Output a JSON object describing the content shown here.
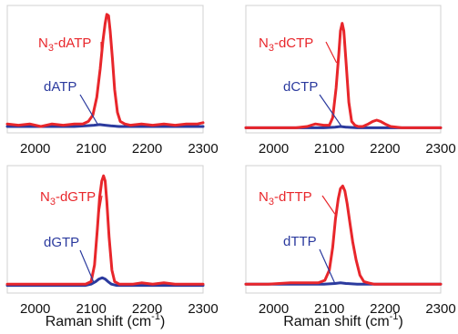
{
  "chart_data": [
    {
      "type": "line",
      "xlabel": "",
      "xlim": [
        1950,
        2300
      ],
      "xticks": [
        2000,
        2100,
        2200,
        2300
      ],
      "ylim": [
        0,
        1
      ],
      "series": [
        {
          "name": "N3-dATP",
          "label_main": "N",
          "label_sub": "3",
          "label_rest": "-dATP",
          "color": "#e8262b",
          "x": [
            1950,
            1970,
            1990,
            2010,
            2030,
            2050,
            2070,
            2085,
            2095,
            2103,
            2110,
            2116,
            2121,
            2125,
            2128,
            2131,
            2134,
            2138,
            2142,
            2147,
            2152,
            2160,
            2170,
            2190,
            2210,
            2230,
            2250,
            2270,
            2290,
            2300
          ],
          "y": [
            0.07,
            0.06,
            0.07,
            0.05,
            0.07,
            0.06,
            0.07,
            0.07,
            0.09,
            0.14,
            0.28,
            0.5,
            0.72,
            0.86,
            0.93,
            0.92,
            0.8,
            0.58,
            0.34,
            0.16,
            0.09,
            0.07,
            0.06,
            0.07,
            0.06,
            0.07,
            0.06,
            0.07,
            0.07,
            0.08
          ]
        },
        {
          "name": "dATP",
          "color": "#2b3a9e",
          "x": [
            1950,
            1990,
            2030,
            2070,
            2090,
            2105,
            2115,
            2125,
            2135,
            2150,
            2170,
            2210,
            2250,
            2300
          ],
          "y": [
            0.05,
            0.05,
            0.05,
            0.05,
            0.055,
            0.06,
            0.065,
            0.06,
            0.055,
            0.05,
            0.05,
            0.05,
            0.05,
            0.05
          ]
        }
      ]
    },
    {
      "type": "line",
      "xlabel": "",
      "xlim": [
        1950,
        2300
      ],
      "xticks": [
        2000,
        2100,
        2200,
        2300
      ],
      "ylim": [
        0,
        1
      ],
      "series": [
        {
          "name": "N3-dCTP",
          "label_main": "N",
          "label_sub": "3",
          "label_rest": "-dCTP",
          "color": "#e8262b",
          "x": [
            1950,
            1980,
            2010,
            2040,
            2060,
            2075,
            2090,
            2100,
            2106,
            2112,
            2117,
            2120,
            2123,
            2126,
            2130,
            2135,
            2140,
            2146,
            2152,
            2160,
            2170,
            2178,
            2185,
            2192,
            2200,
            2210,
            2230,
            2260,
            2300
          ],
          "y": [
            0.04,
            0.04,
            0.04,
            0.04,
            0.05,
            0.07,
            0.06,
            0.06,
            0.12,
            0.35,
            0.62,
            0.8,
            0.86,
            0.8,
            0.55,
            0.24,
            0.09,
            0.06,
            0.05,
            0.05,
            0.07,
            0.09,
            0.1,
            0.09,
            0.07,
            0.05,
            0.04,
            0.04,
            0.04
          ]
        },
        {
          "name": "dCTP",
          "color": "#2b3a9e",
          "x": [
            1950,
            2000,
            2050,
            2090,
            2110,
            2120,
            2130,
            2150,
            2200,
            2250,
            2300
          ],
          "y": [
            0.04,
            0.04,
            0.04,
            0.04,
            0.045,
            0.05,
            0.045,
            0.04,
            0.04,
            0.04,
            0.04
          ]
        }
      ]
    },
    {
      "type": "line",
      "xlabel": "Raman shift (cm",
      "xlabel_sup": "-1",
      "xlabel_end": ")",
      "xlim": [
        1950,
        2300
      ],
      "xticks": [
        2000,
        2100,
        2200,
        2300
      ],
      "ylim": [
        0,
        1
      ],
      "series": [
        {
          "name": "N3-dGTP",
          "label_main": "N",
          "label_sub": "3",
          "label_rest": "-dGTP",
          "color": "#e8262b",
          "x": [
            1950,
            1980,
            2010,
            2040,
            2070,
            2090,
            2100,
            2106,
            2111,
            2115,
            2119,
            2122,
            2125,
            2128,
            2132,
            2137,
            2142,
            2150,
            2160,
            2175,
            2190,
            2210,
            2230,
            2250,
            2270,
            2300
          ],
          "y": [
            0.07,
            0.07,
            0.07,
            0.07,
            0.07,
            0.07,
            0.09,
            0.22,
            0.5,
            0.75,
            0.88,
            0.92,
            0.88,
            0.72,
            0.44,
            0.18,
            0.09,
            0.07,
            0.07,
            0.07,
            0.08,
            0.07,
            0.08,
            0.07,
            0.07,
            0.07
          ]
        },
        {
          "name": "dGTP",
          "color": "#2b3a9e",
          "x": [
            1950,
            2000,
            2050,
            2090,
            2100,
            2108,
            2114,
            2120,
            2125,
            2130,
            2136,
            2145,
            2160,
            2200,
            2250,
            2300
          ],
          "y": [
            0.06,
            0.06,
            0.06,
            0.06,
            0.07,
            0.09,
            0.11,
            0.12,
            0.11,
            0.09,
            0.07,
            0.06,
            0.06,
            0.06,
            0.06,
            0.06
          ]
        }
      ]
    },
    {
      "type": "line",
      "xlabel": "Raman shift (cm",
      "xlabel_sup": "-1",
      "xlabel_end": ")",
      "xlim": [
        1950,
        2300
      ],
      "xticks": [
        2000,
        2100,
        2200,
        2300
      ],
      "ylim": [
        0,
        1
      ],
      "series": [
        {
          "name": "N3-dTTP",
          "label_main": "N",
          "label_sub": "3",
          "label_rest": "-dTTP",
          "color": "#e8262b",
          "x": [
            1950,
            1990,
            2030,
            2060,
            2080,
            2092,
            2100,
            2106,
            2111,
            2116,
            2120,
            2124,
            2128,
            2132,
            2137,
            2142,
            2148,
            2155,
            2162,
            2170,
            2180,
            2200,
            2230,
            2260,
            2300
          ],
          "y": [
            0.07,
            0.07,
            0.08,
            0.08,
            0.08,
            0.1,
            0.18,
            0.36,
            0.58,
            0.74,
            0.82,
            0.84,
            0.8,
            0.7,
            0.55,
            0.4,
            0.26,
            0.14,
            0.09,
            0.08,
            0.07,
            0.07,
            0.07,
            0.07,
            0.07
          ]
        },
        {
          "name": "dTTP",
          "color": "#2b3a9e",
          "x": [
            1950,
            2000,
            2050,
            2090,
            2110,
            2120,
            2130,
            2150,
            2200,
            2250,
            2300
          ],
          "y": [
            0.07,
            0.07,
            0.07,
            0.07,
            0.075,
            0.08,
            0.075,
            0.07,
            0.07,
            0.07,
            0.07
          ]
        }
      ]
    }
  ]
}
